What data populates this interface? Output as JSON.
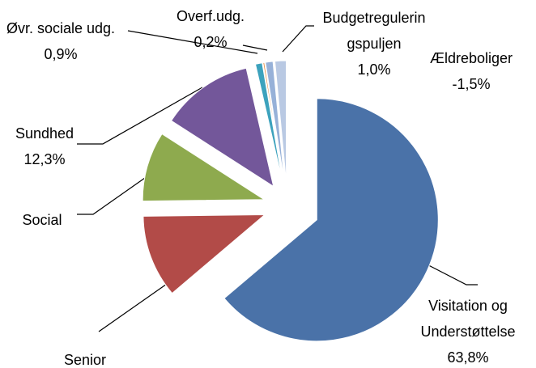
{
  "chart_data": {
    "type": "pie",
    "categories": [
      "Visitation og Understøttelse",
      "Senior",
      "Social",
      "Sundhed",
      "Øvr. sociale udg.",
      "Overf.udg.",
      "Budgetreguleringspuljen",
      "Ældreboliger"
    ],
    "values": [
      63.8,
      11,
      9.3,
      12.3,
      0.9,
      0.2,
      1.0,
      -1.5
    ],
    "value_labels": [
      "63,8%",
      null,
      null,
      "12,3%",
      "0,9%",
      "0,2%",
      "1,0%",
      "-1,5%"
    ],
    "colors": [
      "#4a72a8",
      "#b24b48",
      "#8eaa4e",
      "#73579a",
      "#3ca2bd",
      "#e58a3c",
      "#97b1d8",
      "#b9c9e3"
    ]
  }
}
